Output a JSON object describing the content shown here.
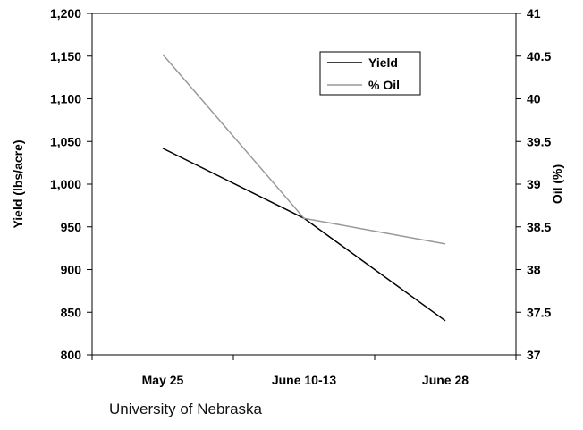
{
  "chart_data": {
    "type": "line",
    "categories": [
      "May 25",
      "June 10-13",
      "June 28"
    ],
    "series": [
      {
        "name": "Yield",
        "axis": "left",
        "color": "#000000",
        "values": [
          1042,
          960,
          840
        ]
      },
      {
        "name": "% Oil",
        "axis": "right",
        "color": "#999999",
        "values": [
          40.52,
          38.6,
          38.3
        ]
      }
    ],
    "ylabel": "Yield (lbs/acre)",
    "y2label": "Oil (%)",
    "ylim": [
      800,
      1200
    ],
    "y2lim": [
      37,
      41
    ],
    "yticks": [
      "800",
      "850",
      "900",
      "950",
      "1,000",
      "1,050",
      "1,100",
      "1,150",
      "1,200"
    ],
    "y2ticks": [
      "37",
      "37.5",
      "38",
      "38.5",
      "39",
      "39.5",
      "40",
      "40.5",
      "41"
    ],
    "legend_position": "top-right",
    "grid": false
  },
  "source_note": "University of Nebraska"
}
